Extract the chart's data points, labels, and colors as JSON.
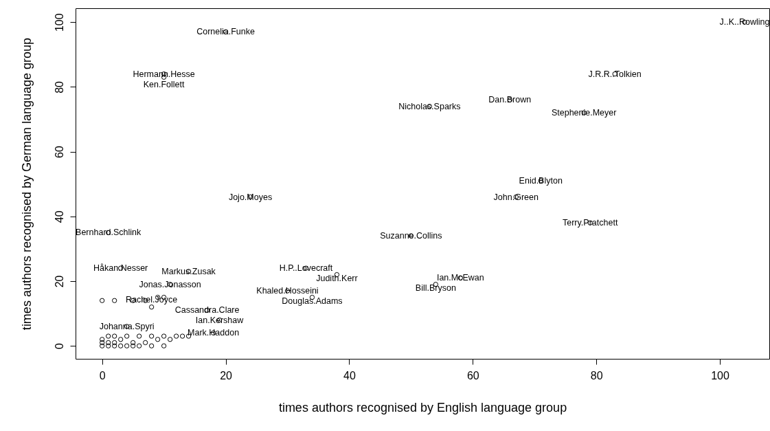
{
  "chart_data": {
    "type": "scatter",
    "xlabel": "times authors recognised by English language group",
    "ylabel": "times authors recognised by German language group",
    "x": [
      104,
      20,
      10,
      10,
      83,
      53,
      66,
      78,
      71,
      67,
      79,
      50,
      24,
      1,
      3,
      14,
      11,
      33,
      38,
      30,
      34,
      58,
      54,
      17,
      19,
      8,
      4,
      18,
      0,
      1,
      2,
      3,
      4,
      5,
      6,
      8,
      10,
      0,
      1,
      2,
      3,
      5,
      7,
      9,
      11,
      12,
      0,
      1,
      2,
      4,
      6,
      8,
      10,
      13,
      14,
      0,
      2,
      5,
      7,
      9,
      10
    ],
    "values": [
      100,
      97,
      84,
      83,
      84,
      74,
      76,
      72,
      51,
      46,
      38,
      34,
      46,
      35,
      24,
      23,
      19,
      24,
      22,
      17,
      15,
      21,
      19,
      11,
      8,
      12,
      6,
      4,
      0,
      0,
      0,
      0,
      0,
      0,
      0,
      0,
      0,
      1,
      1,
      1,
      2,
      1,
      1,
      2,
      2,
      3,
      2,
      3,
      3,
      3,
      3,
      3,
      3,
      3,
      3,
      14,
      14,
      14,
      14,
      15,
      15
    ],
    "color": "#000000",
    "marker": "circle",
    "xlim": [
      -4.3,
      108
    ],
    "ylim": [
      -4,
      104.3
    ],
    "xticks": [
      0,
      20,
      40,
      60,
      80,
      100
    ],
    "yticks": [
      0,
      20,
      40,
      60,
      80,
      100
    ],
    "grid": false,
    "annotations": [
      {
        "text": "J..K..Rowling",
        "x": 104,
        "y": 100
      },
      {
        "text": "Cornelia.Funke",
        "x": 20,
        "y": 97
      },
      {
        "text": "Hermann.Hesse",
        "x": 10,
        "y": 84
      },
      {
        "text": "Ken.Follett",
        "x": 10,
        "y": 83
      },
      {
        "text": "J.R.R..Tolkien",
        "x": 83,
        "y": 84
      },
      {
        "text": "Nicholas.Sparks",
        "x": 53,
        "y": 74
      },
      {
        "text": "Dan.Brown",
        "x": 66,
        "y": 76
      },
      {
        "text": "Stephenie.Meyer",
        "x": 78,
        "y": 72
      },
      {
        "text": "Enid.Blyton",
        "x": 71,
        "y": 51
      },
      {
        "text": "John.Green",
        "x": 67,
        "y": 46
      },
      {
        "text": "Terry.Pratchett",
        "x": 79,
        "y": 38
      },
      {
        "text": "Suzanne.Collins",
        "x": 50,
        "y": 34
      },
      {
        "text": "Jojo.Moyes",
        "x": 24,
        "y": 46
      },
      {
        "text": "Bernhard.Schlink",
        "x": 1,
        "y": 35
      },
      {
        "text": "Håkan.Nesser",
        "x": 3,
        "y": 24
      },
      {
        "text": "Markus.Zusak",
        "x": 14,
        "y": 23
      },
      {
        "text": "Jonas.Jonasson",
        "x": 11,
        "y": 19
      },
      {
        "text": "H.P..Lovecraft",
        "x": 33,
        "y": 24
      },
      {
        "text": "Judith.Kerr",
        "x": 38,
        "y": 22
      },
      {
        "text": "Khaled.Hosseini",
        "x": 30,
        "y": 17
      },
      {
        "text": "Douglas.Adams",
        "x": 34,
        "y": 15
      },
      {
        "text": "Ian.McEwan",
        "x": 58,
        "y": 21
      },
      {
        "text": "Bill.Bryson",
        "x": 54,
        "y": 19
      },
      {
        "text": "Cassandra.Clare",
        "x": 17,
        "y": 11
      },
      {
        "text": "Ian.Kershaw",
        "x": 19,
        "y": 8
      },
      {
        "text": "Rachel.Joyce",
        "x": 8,
        "y": 12
      },
      {
        "text": "Johanna.Spyri",
        "x": 4,
        "y": 6
      },
      {
        "text": "Mark.Haddon",
        "x": 18,
        "y": 4
      }
    ]
  }
}
